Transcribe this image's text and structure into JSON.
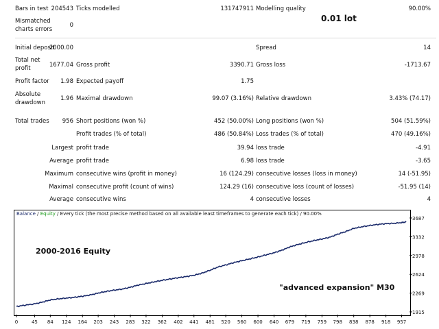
{
  "stats": {
    "bars_in_test": {
      "label": "Bars in test",
      "value": "204543"
    },
    "ticks_modelled": {
      "label": "Ticks modelled",
      "value": "131747911"
    },
    "modelling_quality": {
      "label": "Modelling quality",
      "value": "90.00%"
    },
    "mismatched_errors": {
      "label1": "Mismatched",
      "label2": "charts errors",
      "value": "0"
    },
    "initial_deposit": {
      "label": "Initial deposit",
      "value": "2000.00"
    },
    "spread": {
      "label": "Spread",
      "value": "14"
    },
    "total_net_profit": {
      "label1": "Total net",
      "label2": "profit",
      "value": "1677.04"
    },
    "gross_profit": {
      "label": "Gross profit",
      "value": "3390.71"
    },
    "gross_loss": {
      "label": "Gross loss",
      "value": "-1713.67"
    },
    "profit_factor": {
      "label": "Profit factor",
      "value": "1.98"
    },
    "expected_payoff": {
      "label": "Expected payoff",
      "value": "1.75"
    },
    "absolute_drawdown": {
      "label1": "Absolute",
      "label2": "drawdown",
      "value": "1.96"
    },
    "maximal_drawdown": {
      "label": "Maximal drawdown",
      "value": "99.07 (3.16%)"
    },
    "relative_drawdown": {
      "label": "Relative drawdown",
      "value": "3.43% (74.17)"
    },
    "total_trades": {
      "label": "Total trades",
      "value": "956"
    },
    "short_positions": {
      "label": "Short positions (won %)",
      "value": "452 (50.00%)"
    },
    "long_positions": {
      "label": "Long positions (won %)",
      "value": "504 (51.59%)"
    },
    "profit_trades": {
      "label": "Profit trades (% of total)",
      "value": "486 (50.84%)"
    },
    "loss_trades": {
      "label": "Loss trades (% of total)",
      "value": "470 (49.16%)"
    },
    "largest": {
      "label": "Largest",
      "profit_label": "profit trade",
      "profit_value": "39.94",
      "loss_label": "loss trade",
      "loss_value": "-4.91"
    },
    "average": {
      "label": "Average",
      "profit_label": "profit trade",
      "profit_value": "6.98",
      "loss_label": "loss trade",
      "loss_value": "-3.65"
    },
    "maximum": {
      "label": "Maximum",
      "wins_label": "consecutive wins (profit in money)",
      "wins_value": "16 (124.29)",
      "losses_label": "consecutive losses (loss in money)",
      "losses_value": "14 (-51.95)"
    },
    "maximal": {
      "label": "Maximal",
      "profit_label": "consecutive profit (count of wins)",
      "profit_value": "124.29 (16)",
      "loss_label": "consecutive loss (count of losses)",
      "loss_value": "-51.95 (14)"
    },
    "average_consecutive": {
      "label": "Average",
      "wins_label": "consecutive wins",
      "wins_value": "4",
      "losses_label": "consecutive losses",
      "losses_value": "4"
    }
  },
  "overlays": {
    "lot": "0.01 lot",
    "equity_period": "2000-2016 Equity",
    "strategy": "\"advanced expansion\"  M30"
  },
  "legend": {
    "balance": "Balance",
    "sep1": " / ",
    "equity": "Equity",
    "rest": " / Every tick (the most precise method based on all available least timeframes to generate each tick) / 90.00%"
  },
  "colors": {
    "balance_line": "#1a2a6a",
    "equity_label": "#1a9a1a"
  },
  "chart_data": {
    "type": "line",
    "title": "",
    "xlabel": "",
    "ylabel": "",
    "x_ticks": [
      "0",
      "45",
      "84",
      "124",
      "164",
      "203",
      "243",
      "283",
      "322",
      "362",
      "402",
      "441",
      "481",
      "520",
      "560",
      "600",
      "640",
      "679",
      "719",
      "759",
      "798",
      "838",
      "878",
      "918",
      "957"
    ],
    "y_ticks": [
      "3687",
      "3332",
      "2978",
      "2624",
      "2269",
      "1915"
    ],
    "xlim": [
      0,
      968
    ],
    "ylim": [
      1915,
      3687
    ],
    "series": [
      {
        "values": [
          [
            0,
            2015
          ],
          [
            20,
            2040
          ],
          [
            45,
            2065
          ],
          [
            65,
            2100
          ],
          [
            84,
            2140
          ],
          [
            104,
            2160
          ],
          [
            124,
            2175
          ],
          [
            144,
            2190
          ],
          [
            164,
            2210
          ],
          [
            184,
            2235
          ],
          [
            203,
            2270
          ],
          [
            223,
            2300
          ],
          [
            243,
            2325
          ],
          [
            263,
            2345
          ],
          [
            283,
            2380
          ],
          [
            302,
            2420
          ],
          [
            322,
            2450
          ],
          [
            342,
            2480
          ],
          [
            362,
            2510
          ],
          [
            382,
            2535
          ],
          [
            402,
            2560
          ],
          [
            421,
            2580
          ],
          [
            441,
            2605
          ],
          [
            461,
            2645
          ],
          [
            481,
            2700
          ],
          [
            500,
            2760
          ],
          [
            520,
            2800
          ],
          [
            540,
            2845
          ],
          [
            560,
            2880
          ],
          [
            580,
            2915
          ],
          [
            600,
            2950
          ],
          [
            620,
            2990
          ],
          [
            640,
            3030
          ],
          [
            660,
            3080
          ],
          [
            679,
            3140
          ],
          [
            699,
            3185
          ],
          [
            719,
            3225
          ],
          [
            739,
            3260
          ],
          [
            759,
            3290
          ],
          [
            779,
            3325
          ],
          [
            798,
            3380
          ],
          [
            818,
            3430
          ],
          [
            838,
            3490
          ],
          [
            858,
            3520
          ],
          [
            878,
            3545
          ],
          [
            898,
            3565
          ],
          [
            918,
            3580
          ],
          [
            938,
            3585
          ],
          [
            957,
            3600
          ],
          [
            968,
            3610
          ]
        ]
      }
    ]
  }
}
